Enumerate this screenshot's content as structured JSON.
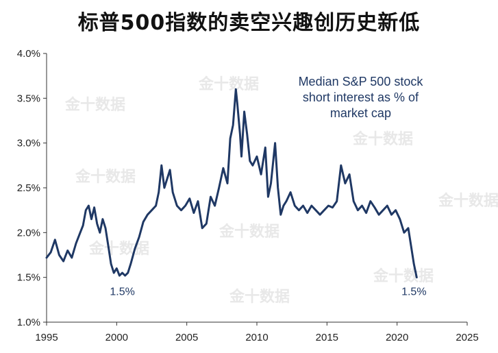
{
  "chart_data": {
    "type": "line",
    "title": "标普500指数的卖空兴趣创历史新低",
    "annotation_lines": [
      "Median S&P 500 stock",
      "short interest as % of",
      "market cap"
    ],
    "callouts": [
      {
        "text": "1.5%",
        "x": 2000.6,
        "y": 1.5
      },
      {
        "text": "1.5%",
        "x": 2021.4,
        "y": 1.5
      }
    ],
    "watermark": "金十数据",
    "xlim": [
      1995,
      2025
    ],
    "ylim": [
      1.0,
      4.0
    ],
    "x_ticks": [
      1995,
      2000,
      2005,
      2010,
      2015,
      2020,
      2025
    ],
    "y_ticks": [
      1.0,
      1.5,
      2.0,
      2.5,
      3.0,
      3.5,
      4.0
    ],
    "y_tick_labels": [
      "1.0%",
      "1.5%",
      "2.0%",
      "2.5%",
      "3.0%",
      "3.5%",
      "4.0%"
    ],
    "grid": false,
    "line_color": "#1f3864",
    "series": [
      {
        "name": "Median S&P 500 stock short interest as % of market cap",
        "x": [
          1995.0,
          1995.3,
          1995.6,
          1995.9,
          1996.2,
          1996.5,
          1996.8,
          1997.1,
          1997.4,
          1997.6,
          1997.8,
          1998.0,
          1998.2,
          1998.4,
          1998.6,
          1998.8,
          1999.0,
          1999.2,
          1999.4,
          1999.6,
          1999.8,
          2000.0,
          2000.2,
          2000.4,
          2000.6,
          2000.8,
          2001.0,
          2001.3,
          2001.6,
          2001.9,
          2002.2,
          2002.5,
          2002.8,
          2003.0,
          2003.2,
          2003.4,
          2003.6,
          2003.8,
          2004.0,
          2004.3,
          2004.6,
          2004.9,
          2005.2,
          2005.5,
          2005.8,
          2006.1,
          2006.4,
          2006.7,
          2007.0,
          2007.3,
          2007.6,
          2007.9,
          2008.1,
          2008.3,
          2008.5,
          2008.6,
          2008.8,
          2008.9,
          2009.1,
          2009.3,
          2009.5,
          2009.7,
          2010.0,
          2010.3,
          2010.6,
          2010.8,
          2011.0,
          2011.3,
          2011.5,
          2011.7,
          2011.9,
          2012.1,
          2012.4,
          2012.7,
          2013.0,
          2013.3,
          2013.6,
          2013.9,
          2014.2,
          2014.5,
          2014.8,
          2015.1,
          2015.4,
          2015.7,
          2016.0,
          2016.3,
          2016.6,
          2016.9,
          2017.2,
          2017.5,
          2017.8,
          2018.1,
          2018.4,
          2018.7,
          2019.0,
          2019.3,
          2019.6,
          2019.9,
          2020.2,
          2020.5,
          2020.8,
          2021.0,
          2021.2,
          2021.4
        ],
        "y": [
          1.72,
          1.78,
          1.92,
          1.75,
          1.68,
          1.8,
          1.72,
          1.88,
          2.0,
          2.08,
          2.25,
          2.3,
          2.15,
          2.28,
          2.1,
          2.0,
          2.15,
          2.05,
          1.85,
          1.65,
          1.55,
          1.6,
          1.52,
          1.55,
          1.52,
          1.55,
          1.65,
          1.82,
          1.95,
          2.12,
          2.2,
          2.25,
          2.3,
          2.45,
          2.75,
          2.5,
          2.6,
          2.7,
          2.45,
          2.3,
          2.25,
          2.3,
          2.38,
          2.22,
          2.35,
          2.05,
          2.1,
          2.4,
          2.3,
          2.5,
          2.72,
          2.55,
          3.05,
          3.2,
          3.6,
          3.45,
          3.1,
          2.85,
          3.35,
          3.1,
          2.8,
          2.75,
          2.85,
          2.65,
          2.95,
          2.4,
          2.55,
          3.0,
          2.5,
          2.2,
          2.3,
          2.35,
          2.45,
          2.3,
          2.25,
          2.3,
          2.22,
          2.3,
          2.25,
          2.2,
          2.25,
          2.3,
          2.28,
          2.35,
          2.75,
          2.55,
          2.65,
          2.35,
          2.25,
          2.3,
          2.22,
          2.35,
          2.28,
          2.2,
          2.25,
          2.3,
          2.2,
          2.25,
          2.15,
          2.0,
          2.05,
          1.85,
          1.65,
          1.5
        ]
      }
    ]
  }
}
